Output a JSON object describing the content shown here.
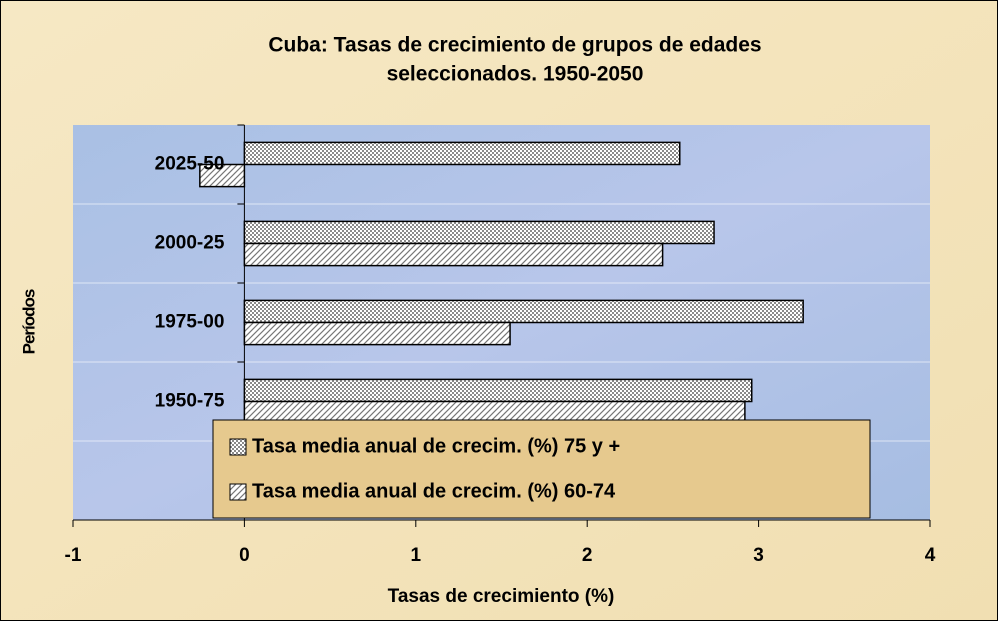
{
  "chart_data": {
    "type": "hbar",
    "title": [
      "Cuba: Tasas de crecimiento de grupos de edades",
      "seleccionados. 1950-2050"
    ],
    "x_label": "Tasas de crecimiento (%)",
    "y_label": "Períodos",
    "categories": [
      null,
      "1950-75",
      "1975-00",
      "2000-25",
      "2025-50"
    ],
    "series": [
      {
        "name": "Tasa media anual de crecim. (%) 75 y +",
        "color": "#c8c8c8",
        "values": [
          null,
          2.96,
          3.26,
          2.74,
          2.54
        ]
      },
      {
        "name": "Tasa media anual de crecim. (%) 60-74",
        "color": "#ffffff",
        "values": [
          null,
          2.92,
          1.55,
          2.44,
          -0.26
        ]
      }
    ],
    "xlim": [
      -1,
      4
    ],
    "xticks": [
      -1,
      0,
      1,
      2,
      3,
      4
    ]
  }
}
